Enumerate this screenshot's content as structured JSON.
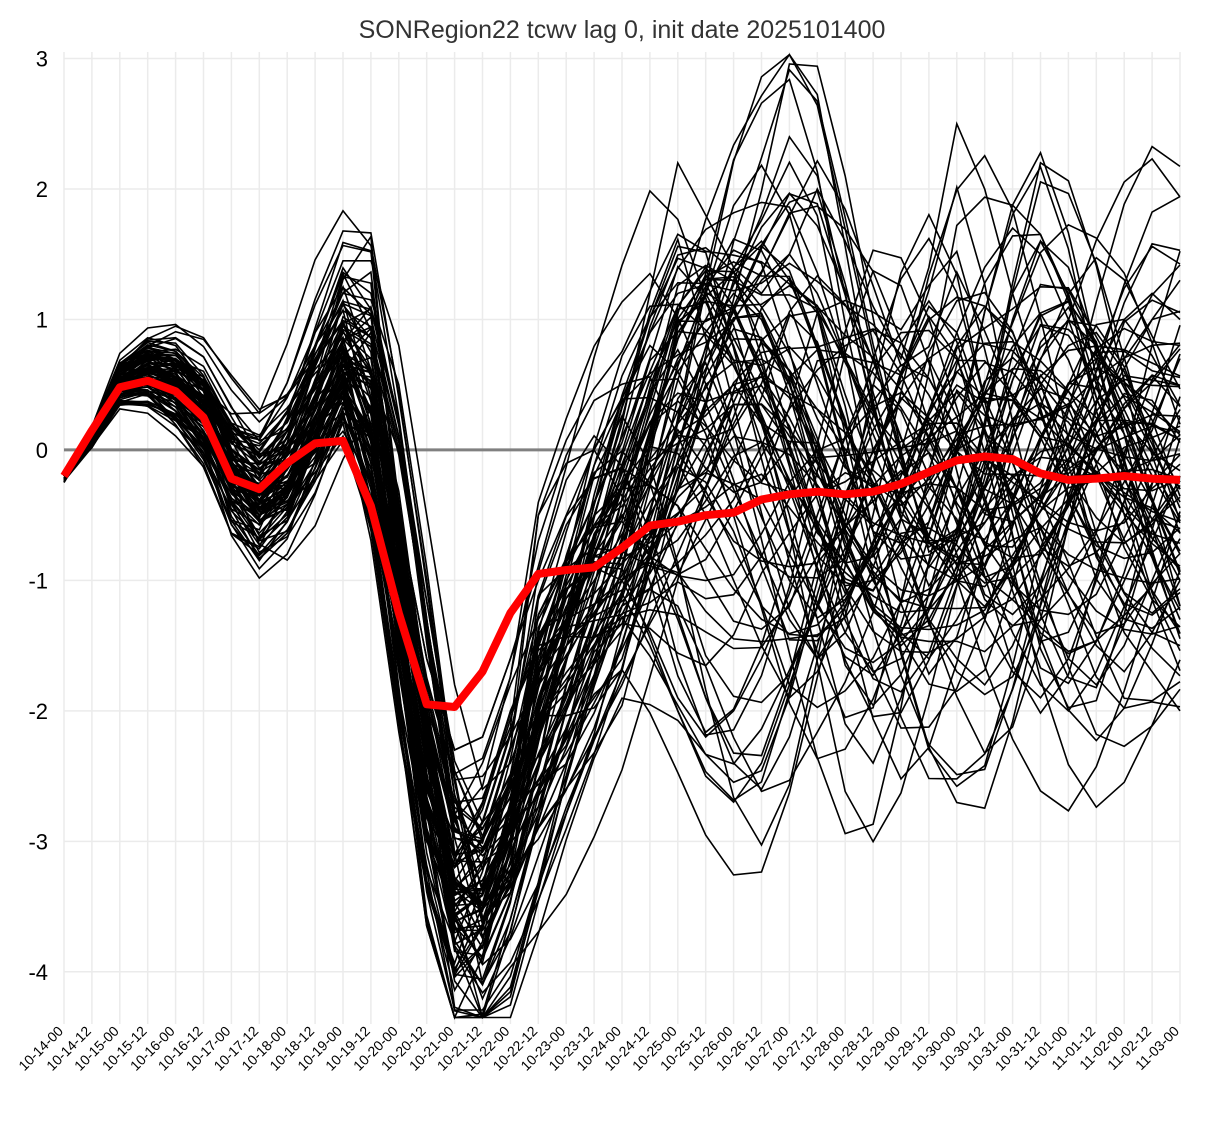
{
  "chart_data": {
    "type": "line",
    "title": "SONRegion22 tcwv lag 0, init date 2025101400",
    "xlabel": "",
    "ylabel": "",
    "x": [
      "10-14-00",
      "10-14-12",
      "10-15-00",
      "10-15-12",
      "10-16-00",
      "10-16-12",
      "10-17-00",
      "10-17-12",
      "10-18-00",
      "10-18-12",
      "10-19-00",
      "10-19-12",
      "10-20-00",
      "10-20-12",
      "10-21-00",
      "10-21-12",
      "10-22-00",
      "10-22-12",
      "10-23-00",
      "10-23-12",
      "10-24-00",
      "10-24-12",
      "10-25-00",
      "10-25-12",
      "10-26-00",
      "10-26-12",
      "10-27-00",
      "10-27-12",
      "10-28-00",
      "10-28-12",
      "10-29-00",
      "10-29-12",
      "10-30-00",
      "10-30-12",
      "10-31-00",
      "10-31-12",
      "11-01-00",
      "11-01-12",
      "11-02-00",
      "11-02-12",
      "11-03-00"
    ],
    "ylim": [
      -4.4,
      3.05
    ],
    "yticks": [
      3,
      2,
      1,
      0,
      -1,
      -2,
      -3,
      -4
    ],
    "grid": true,
    "zero_line": {
      "value": 0,
      "color": "#808080"
    },
    "ensemble_color": "#000000",
    "ensemble_count": 100,
    "ensemble_mean": {
      "color": "#ff0000",
      "values": [
        -0.2,
        0.15,
        0.48,
        0.53,
        0.45,
        0.25,
        -0.22,
        -0.3,
        -0.1,
        0.05,
        0.07,
        -0.43,
        -1.25,
        -1.95,
        -1.97,
        -1.7,
        -1.25,
        -0.95,
        -0.92,
        -0.9,
        -0.75,
        -0.58,
        -0.55,
        -0.5,
        -0.48,
        -0.38,
        -0.34,
        -0.32,
        -0.34,
        -0.32,
        -0.26,
        -0.17,
        -0.08,
        -0.05,
        -0.07,
        -0.18,
        -0.23,
        -0.22,
        -0.2,
        -0.22,
        -0.23
      ]
    },
    "series": [
      {
        "values": [
          -0.2,
          0.05,
          0.55,
          0.7,
          0.68,
          0.45,
          0.1,
          -0.2,
          0.25,
          0.9,
          1.45,
          1.45,
          0.8,
          -0.5,
          -1.8,
          -2.6,
          -2.4,
          -1.8,
          -1.1,
          -0.5,
          0.2,
          1.2,
          2.2,
          1.8,
          1.4,
          1.2,
          1.5,
          2.0,
          1.6,
          1.1,
          0.7,
          1.4,
          2.5,
          2.0,
          1.2,
          0.5,
          0.0,
          -0.8,
          -1.4,
          -1.7,
          -2.0
        ]
      },
      {
        "values": [
          -0.2,
          0.1,
          0.6,
          0.72,
          0.7,
          0.5,
          0.2,
          0.0,
          0.3,
          0.8,
          1.2,
          1.15,
          0.5,
          -0.9,
          -2.5,
          -3.6,
          -3.3,
          -2.6,
          -2.2,
          -1.9,
          -1.6,
          -0.9,
          -0.2,
          0.6,
          1.3,
          1.8,
          2.4,
          2.1,
          1.2,
          0.3,
          -0.4,
          -0.9,
          -0.6,
          0.2,
          1.0,
          1.6,
          1.2,
          0.5,
          -0.2,
          -0.8,
          -1.3
        ]
      },
      {
        "values": [
          -0.25,
          0.1,
          0.5,
          0.55,
          0.5,
          0.3,
          -0.1,
          -0.4,
          -0.3,
          0.1,
          0.6,
          0.9,
          -0.4,
          -2.2,
          -3.6,
          -3.9,
          -3.4,
          -2.6,
          -1.8,
          -1.2,
          -0.6,
          0.1,
          0.9,
          1.2,
          0.8,
          0.2,
          -0.5,
          -1.3,
          -2.1,
          -2.4,
          -1.9,
          -1.1,
          -0.3,
          0.5,
          1.2,
          1.6,
          1.4,
          0.8,
          0.2,
          -0.4,
          -0.8
        ]
      },
      {
        "values": [
          -0.2,
          0.1,
          0.55,
          0.62,
          0.55,
          0.35,
          -0.05,
          -0.35,
          -0.2,
          0.25,
          0.7,
          0.5,
          -0.6,
          -2.0,
          -3.3,
          -3.5,
          -2.7,
          -1.9,
          -1.3,
          -0.8,
          -0.5,
          -0.8,
          -1.3,
          -1.9,
          -2.4,
          -2.6,
          -2.2,
          -1.5,
          -0.8,
          -0.1,
          0.6,
          1.1,
          0.9,
          0.3,
          -0.4,
          -1.1,
          -1.6,
          -1.8,
          -1.5,
          -1.0,
          -0.5
        ]
      },
      {
        "values": [
          -0.2,
          0.05,
          0.45,
          0.5,
          0.4,
          0.2,
          -0.3,
          -0.5,
          -0.4,
          0.0,
          0.4,
          -0.3,
          -1.6,
          -2.8,
          -3.7,
          -3.6,
          -3.0,
          -2.4,
          -2.0,
          -1.5,
          -1.0,
          -0.5,
          -0.1,
          0.3,
          0.5,
          0.2,
          -0.3,
          -0.9,
          -1.4,
          -1.7,
          -1.6,
          -1.2,
          -0.7,
          -0.3,
          0.1,
          0.5,
          0.8,
          0.9,
          0.6,
          0.1,
          -0.3
        ]
      },
      {
        "values": [
          -0.2,
          0.1,
          0.5,
          0.6,
          0.5,
          0.3,
          -0.2,
          -0.4,
          -0.1,
          0.3,
          0.8,
          0.2,
          -1.2,
          -2.6,
          -3.1,
          -2.7,
          -2.0,
          -1.5,
          -1.0,
          -0.6,
          -0.3,
          0.2,
          0.7,
          1.0,
          1.4,
          1.6,
          1.3,
          0.8,
          0.2,
          -0.4,
          -0.9,
          -1.3,
          -1.6,
          -1.8,
          -1.5,
          -1.0,
          -0.4,
          0.2,
          0.7,
          1.0,
          1.3
        ]
      },
      {
        "values": [
          -0.2,
          0.1,
          0.48,
          0.55,
          0.45,
          0.25,
          -0.25,
          -0.45,
          -0.35,
          0.1,
          0.5,
          -0.1,
          -1.4,
          -2.5,
          -3.2,
          -3.0,
          -2.3,
          -1.7,
          -1.2,
          -0.9,
          -1.0,
          -1.4,
          -1.9,
          -2.2,
          -2.0,
          -1.6,
          -1.1,
          -0.5,
          0.1,
          0.5,
          0.3,
          -0.2,
          -0.8,
          -1.3,
          -1.7,
          -1.9,
          -1.6,
          -1.0,
          -0.4,
          0.2,
          0.7
        ]
      },
      {
        "values": [
          -0.2,
          0.08,
          0.52,
          0.6,
          0.5,
          0.28,
          -0.2,
          -0.4,
          -0.2,
          0.2,
          0.6,
          0.4,
          -0.8,
          -2.1,
          -2.8,
          -2.4,
          -1.8,
          -1.3,
          -0.9,
          -0.4,
          0.1,
          0.6,
          1.1,
          1.4,
          1.1,
          0.6,
          0.0,
          -0.6,
          -1.1,
          -0.8,
          -0.3,
          0.3,
          0.9,
          1.4,
          1.7,
          1.5,
          1.0,
          0.4,
          -0.1,
          -0.6,
          -1.0
        ]
      },
      {
        "values": [
          -0.2,
          0.1,
          0.5,
          0.58,
          0.48,
          0.26,
          -0.28,
          -0.5,
          -0.3,
          0.05,
          0.45,
          -0.4,
          -1.7,
          -3.0,
          -3.5,
          -3.2,
          -2.6,
          -2.1,
          -1.6,
          -1.2,
          -0.8,
          -0.4,
          -0.1,
          -0.5,
          -1.0,
          -1.5,
          -1.9,
          -1.7,
          -1.2,
          -0.7,
          -0.2,
          0.3,
          0.6,
          0.4,
          -0.1,
          -0.6,
          -1.1,
          -1.5,
          -1.7,
          -1.4,
          -1.0
        ]
      },
      {
        "values": [
          -0.2,
          0.12,
          0.55,
          0.65,
          0.58,
          0.35,
          -0.1,
          -0.3,
          0.0,
          0.4,
          0.9,
          0.7,
          -0.4,
          -1.8,
          -2.7,
          -2.9,
          -2.5,
          -2.0,
          -1.4,
          -0.8,
          -0.3,
          0.2,
          0.6,
          0.9,
          1.2,
          1.0,
          0.5,
          -0.1,
          -0.7,
          -1.2,
          -1.5,
          -1.3,
          -0.9,
          -0.4,
          0.2,
          0.7,
          1.0,
          0.8,
          0.4,
          0.0,
          -0.4
        ]
      },
      {
        "values": [
          -0.2,
          0.1,
          0.47,
          0.52,
          0.42,
          0.22,
          -0.32,
          -0.55,
          -0.45,
          -0.1,
          0.3,
          -0.6,
          -2.0,
          -3.3,
          -4.0,
          -3.8,
          -3.3,
          -2.9,
          -2.6,
          -2.2,
          -1.8,
          -1.3,
          -0.8,
          -0.3,
          0.2,
          0.6,
          0.4,
          0.0,
          -0.5,
          -1.0,
          -1.4,
          -1.6,
          -1.3,
          -0.9,
          -0.4,
          0.1,
          0.5,
          0.7,
          0.5,
          0.1,
          -0.3
        ]
      },
      {
        "values": [
          -0.2,
          0.09,
          0.5,
          0.6,
          0.52,
          0.3,
          -0.15,
          -0.35,
          -0.15,
          0.3,
          0.75,
          0.6,
          -0.5,
          -1.6,
          -2.3,
          -2.2,
          -1.6,
          -1.0,
          -0.5,
          0.0,
          0.4,
          0.8,
          0.6,
          0.2,
          -0.3,
          -0.8,
          -1.3,
          -1.6,
          -1.4,
          -0.9,
          -0.3,
          0.3,
          0.8,
          1.1,
          0.9,
          0.4,
          -0.2,
          -0.7,
          -1.1,
          -1.4,
          -1.5
        ]
      },
      {
        "values": [
          -0.2,
          0.1,
          0.53,
          0.63,
          0.55,
          0.32,
          -0.12,
          -0.38,
          -0.25,
          0.15,
          0.55,
          0.1,
          -1.0,
          -2.3,
          -3.4,
          -3.3,
          -2.9,
          -2.4,
          -1.9,
          -1.3,
          -0.7,
          -0.2,
          0.3,
          0.7,
          1.0,
          1.3,
          1.5,
          1.2,
          0.7,
          0.2,
          -0.3,
          -0.7,
          -1.0,
          -1.2,
          -0.9,
          -0.4,
          0.1,
          0.6,
          1.0,
          1.2,
          1.0
        ]
      },
      {
        "values": [
          -0.2,
          0.11,
          0.49,
          0.56,
          0.47,
          0.27,
          -0.22,
          -0.42,
          -0.28,
          0.12,
          0.5,
          -0.2,
          -1.5,
          -2.9,
          -3.8,
          -4.1,
          -3.6,
          -2.8,
          -2.0,
          -1.4,
          -1.1,
          -1.5,
          -2.0,
          -2.5,
          -2.7,
          -2.4,
          -1.8,
          -1.2,
          -0.6,
          0.0,
          0.4,
          0.2,
          -0.3,
          -0.9,
          -1.4,
          -1.8,
          -2.0,
          -1.7,
          -1.2,
          -0.7,
          -0.2
        ]
      }
    ]
  }
}
